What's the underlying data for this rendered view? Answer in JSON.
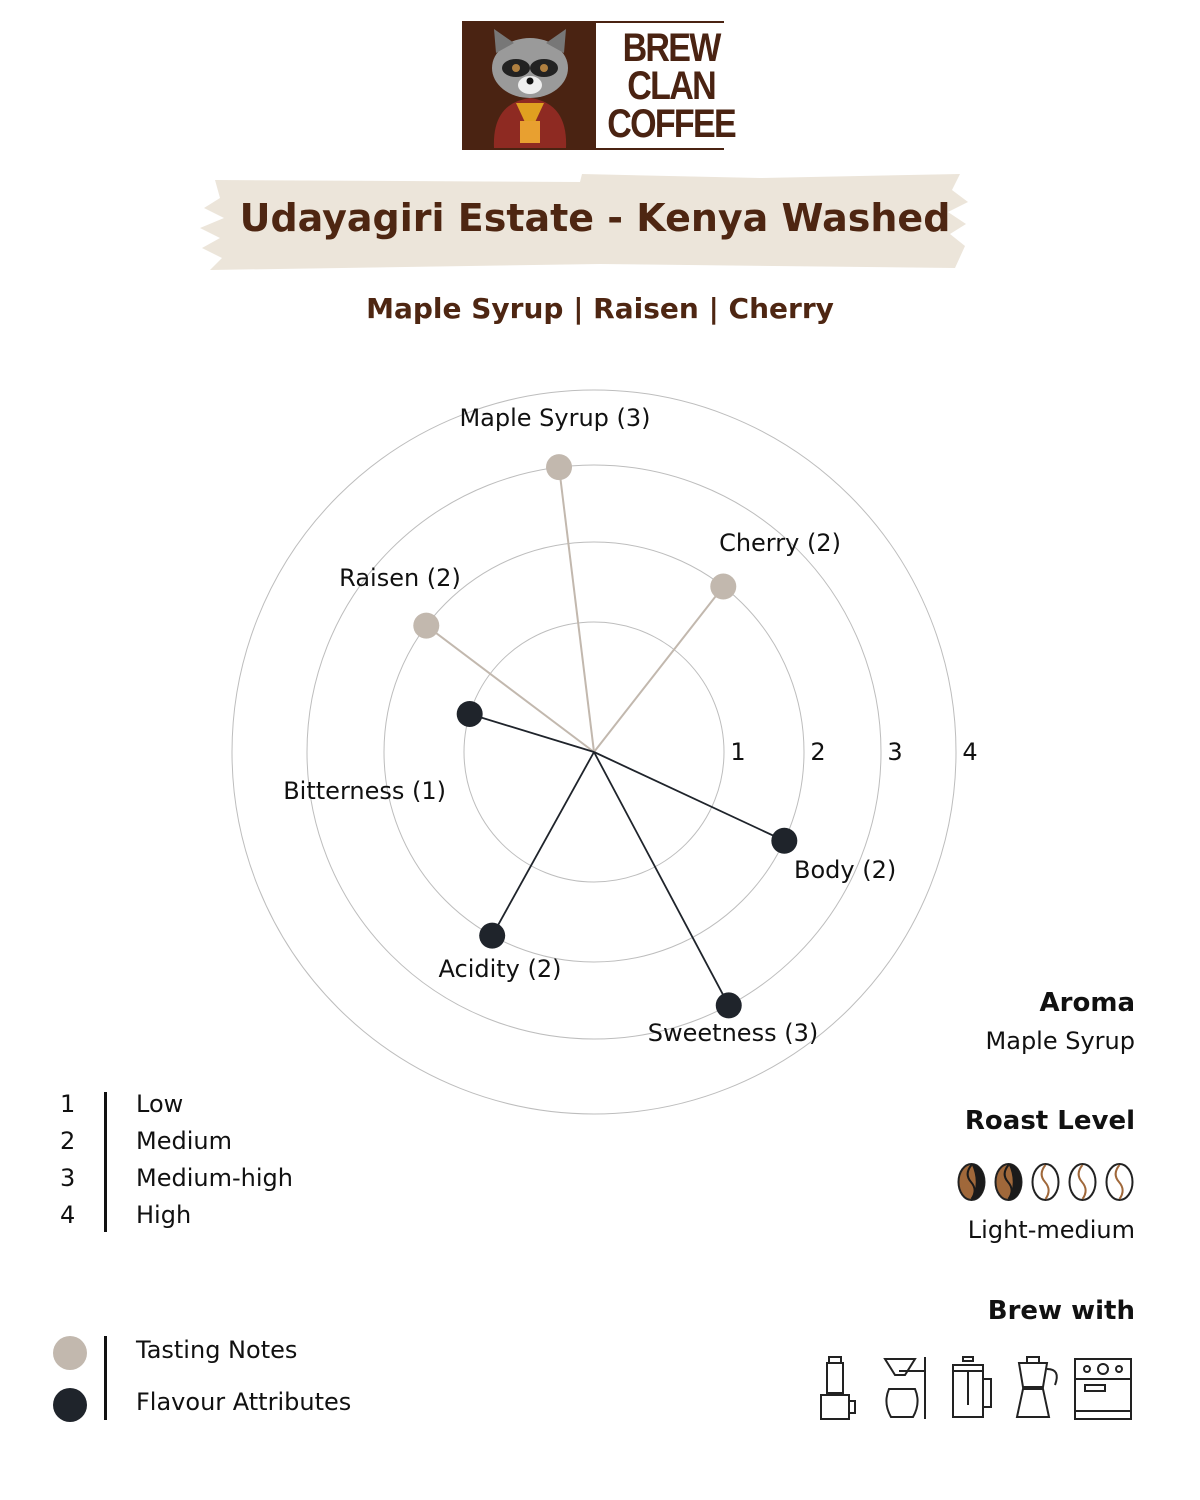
{
  "logo": {
    "text": [
      "BREW",
      "CLAN",
      "COFFEE"
    ],
    "brand_color": "#4a2312"
  },
  "title": "Udayagiri Estate - Kenya Washed",
  "subtitle": "Maple Syrup | Raisen | Cherry",
  "chart_data": {
    "type": "radar",
    "rmax": 4,
    "ring_labels": [
      "1",
      "2",
      "3",
      "4"
    ],
    "series": [
      {
        "name": "Tasting Notes",
        "color": "#c2b8ae",
        "points": [
          {
            "axis": "Maple Syrup",
            "value": 3,
            "label": "Maple Syrup (3)"
          },
          {
            "axis": "Cherry",
            "value": 2,
            "label": "Cherry (2)"
          },
          {
            "axis": "Raisen",
            "value": 2,
            "label": "Raisen (2)"
          }
        ]
      },
      {
        "name": "Flavour Attributes",
        "color": "#1f242b",
        "points": [
          {
            "axis": "Body",
            "value": 2,
            "label": "Body (2)"
          },
          {
            "axis": "Sweetness",
            "value": 3,
            "label": "Sweetness (3)"
          },
          {
            "axis": "Acidity",
            "value": 2,
            "label": "Acidity (2)"
          },
          {
            "axis": "Bitterness",
            "value": 1,
            "label": "Bitterness (1)"
          }
        ]
      }
    ]
  },
  "scale_legend": [
    {
      "n": "1",
      "t": "Low"
    },
    {
      "n": "2",
      "t": "Medium"
    },
    {
      "n": "3",
      "t": "Medium-high"
    },
    {
      "n": "4",
      "t": "High"
    }
  ],
  "series_legend": [
    {
      "t": "Tasting Notes",
      "color": "#c2b8ae"
    },
    {
      "t": "Flavour Attributes",
      "color": "#1f242b"
    }
  ],
  "aroma": {
    "heading": "Aroma",
    "value": "Maple Syrup"
  },
  "roast": {
    "heading": "Roast Level",
    "value": "Light-medium",
    "filled": 2,
    "total": 5
  },
  "brew": {
    "heading": "Brew with",
    "icons": [
      "aeropress-icon",
      "pour-over-icon",
      "french-press-icon",
      "moka-pot-icon",
      "espresso-machine-icon"
    ]
  }
}
